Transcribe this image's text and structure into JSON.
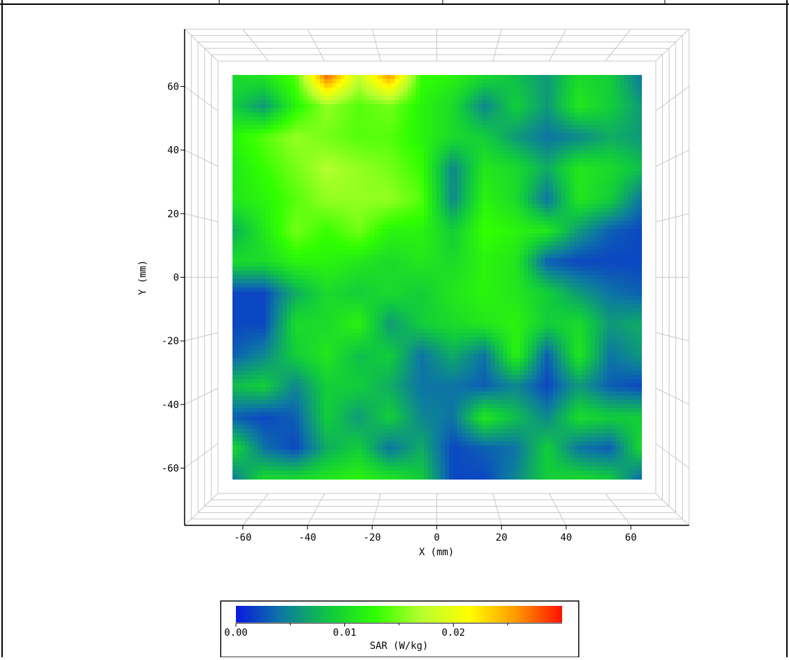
{
  "chart_data": {
    "type": "heatmap",
    "title": "",
    "xlabel": "X (mm)",
    "ylabel": "Y (mm)",
    "x_ticks": [
      "-60",
      "-40",
      "-20",
      "0",
      "20",
      "40",
      "60"
    ],
    "y_ticks": [
      "60",
      "40",
      "20",
      "0",
      "-20",
      "-40",
      "-60"
    ],
    "xlim": [
      -78,
      78
    ],
    "ylim": [
      -78,
      78
    ],
    "x": [
      -65,
      -55,
      -45,
      -35,
      -25,
      -15,
      -5,
      5,
      15,
      25,
      35,
      45,
      55,
      65
    ],
    "y": [
      65,
      55,
      45,
      35,
      25,
      15,
      5,
      -5,
      -15,
      -25,
      -35,
      -45,
      -55,
      -65
    ],
    "z_units": "W/kg",
    "z": [
      [
        0.01,
        0.011,
        0.014,
        0.028,
        0.018,
        0.026,
        0.013,
        0.012,
        0.01,
        0.008,
        0.006,
        0.01,
        0.009,
        0.004
      ],
      [
        0.009,
        0.006,
        0.012,
        0.016,
        0.014,
        0.015,
        0.012,
        0.01,
        0.005,
        0.009,
        0.006,
        0.011,
        0.009,
        0.006
      ],
      [
        0.012,
        0.014,
        0.016,
        0.015,
        0.014,
        0.014,
        0.012,
        0.01,
        0.009,
        0.006,
        0.004,
        0.005,
        0.007,
        0.006
      ],
      [
        0.011,
        0.013,
        0.015,
        0.017,
        0.016,
        0.015,
        0.013,
        0.005,
        0.011,
        0.01,
        0.007,
        0.011,
        0.01,
        0.008
      ],
      [
        0.011,
        0.012,
        0.014,
        0.016,
        0.016,
        0.016,
        0.014,
        0.005,
        0.012,
        0.01,
        0.004,
        0.011,
        0.009,
        0.004
      ],
      [
        0.007,
        0.011,
        0.015,
        0.013,
        0.015,
        0.012,
        0.012,
        0.009,
        0.013,
        0.012,
        0.011,
        0.006,
        0.003,
        0.002
      ],
      [
        0.01,
        0.01,
        0.012,
        0.012,
        0.011,
        0.01,
        0.011,
        0.01,
        0.012,
        0.011,
        0.003,
        0.002,
        0.002,
        0.002
      ],
      [
        0.002,
        0.002,
        0.007,
        0.01,
        0.009,
        0.01,
        0.009,
        0.011,
        0.012,
        0.011,
        0.009,
        0.006,
        0.004,
        0.003
      ],
      [
        0.002,
        0.002,
        0.01,
        0.01,
        0.012,
        0.006,
        0.009,
        0.01,
        0.011,
        0.012,
        0.009,
        0.01,
        0.006,
        0.007
      ],
      [
        0.003,
        0.005,
        0.009,
        0.011,
        0.008,
        0.009,
        0.004,
        0.007,
        0.004,
        0.012,
        0.003,
        0.011,
        0.004,
        0.006
      ],
      [
        0.008,
        0.009,
        0.005,
        0.009,
        0.009,
        0.007,
        0.004,
        0.004,
        0.003,
        0.005,
        0.002,
        0.006,
        0.003,
        0.002
      ],
      [
        0.003,
        0.002,
        0.003,
        0.009,
        0.006,
        0.009,
        0.005,
        0.004,
        0.011,
        0.008,
        0.005,
        0.01,
        0.009,
        0.009
      ],
      [
        0.01,
        0.004,
        0.002,
        0.007,
        0.009,
        0.004,
        0.007,
        0.002,
        0.003,
        0.004,
        0.009,
        0.004,
        0.003,
        0.01
      ],
      [
        0.004,
        0.01,
        0.01,
        0.011,
        0.012,
        0.011,
        0.009,
        0.002,
        0.002,
        0.005,
        0.009,
        0.01,
        0.009,
        0.003
      ]
    ],
    "colorbar": {
      "label": "SAR (W/kg)",
      "ticks": [
        "0.00",
        "0.01",
        "0.02"
      ],
      "range": [
        0,
        0.03
      ],
      "colors": [
        "#0a1ae0",
        "#0d7aa0",
        "#10c840",
        "#30ff00",
        "#b8ff30",
        "#ffff00",
        "#ff9a00",
        "#ff1000"
      ]
    },
    "grid": true
  }
}
